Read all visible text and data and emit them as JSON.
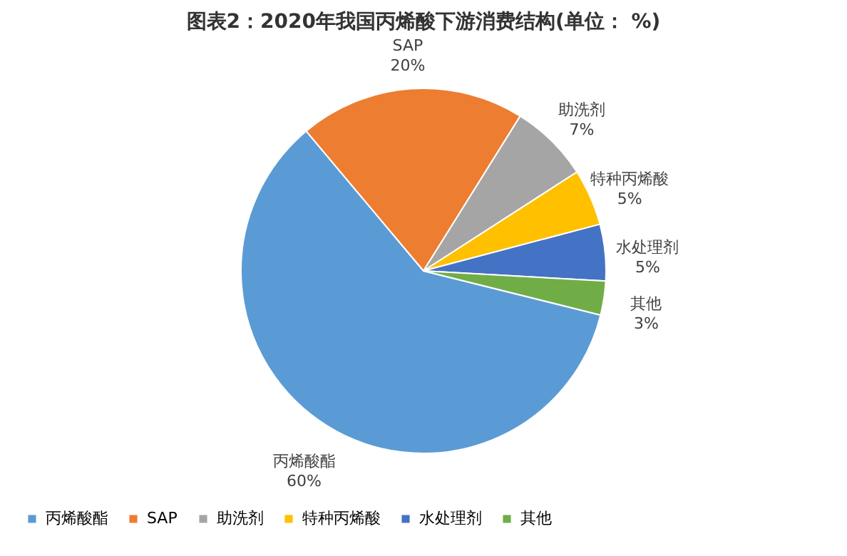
{
  "chart_data": {
    "type": "pie",
    "title": "图表2：2020年我国丙烯酸下游消费结构(单位： %)",
    "categories": [
      "丙烯酸酯",
      "SAP",
      "助洗剂",
      "特种丙烯酸",
      "水处理剂",
      "其他"
    ],
    "values": [
      60,
      20,
      7,
      5,
      5,
      3
    ],
    "colors": [
      "#5b9bd5",
      "#ed7d31",
      "#a5a5a5",
      "#ffc000",
      "#4472c4",
      "#70ad47"
    ],
    "value_labels": [
      "60%",
      "20%",
      "7%",
      "5%",
      "5%",
      "3%"
    ],
    "legend": "bottom"
  }
}
